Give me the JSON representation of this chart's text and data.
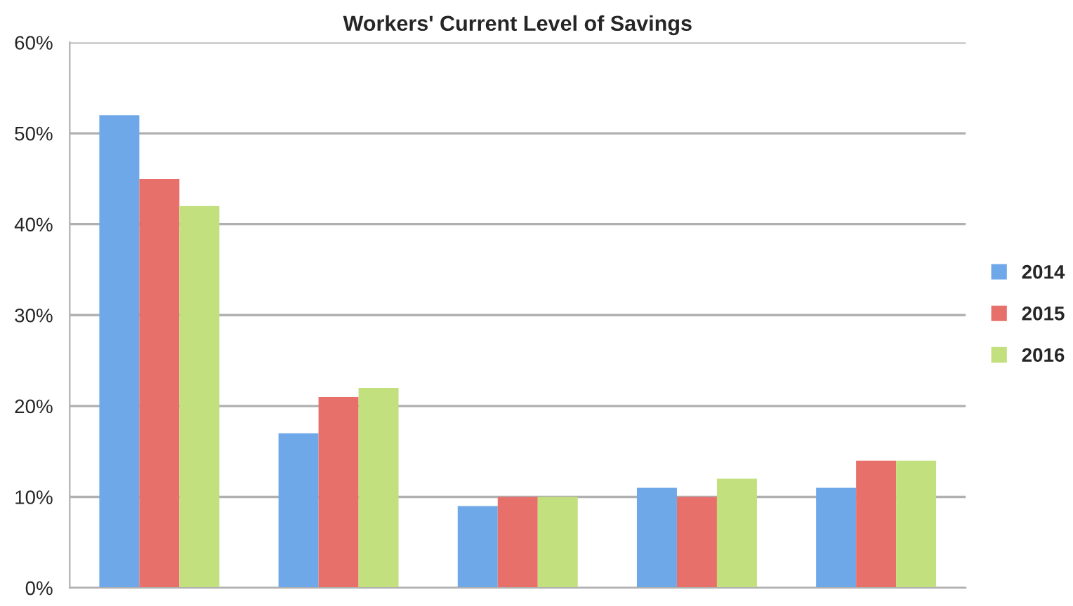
{
  "chart_data": {
    "type": "bar",
    "title": "Workers' Current Level of Savings",
    "categories": [
      null,
      null,
      null,
      null,
      null
    ],
    "series": [
      {
        "name": "2014",
        "color": "#6fa8e8",
        "values": [
          52,
          17,
          9,
          11,
          11
        ]
      },
      {
        "name": "2015",
        "color": "#e8706a",
        "values": [
          45,
          21,
          10,
          10,
          14
        ]
      },
      {
        "name": "2016",
        "color": "#c3e07e",
        "values": [
          42,
          22,
          10,
          12,
          14
        ]
      }
    ],
    "ylim": [
      0,
      60
    ],
    "yticks": [
      {
        "value": 0,
        "label": "0%"
      },
      {
        "value": 10,
        "label": "10%"
      },
      {
        "value": 20,
        "label": "20%"
      },
      {
        "value": 30,
        "label": "30%"
      },
      {
        "value": 40,
        "label": "40%"
      },
      {
        "value": 50,
        "label": "50%"
      },
      {
        "value": 60,
        "label": "60%"
      }
    ],
    "grid": "y",
    "legend": "right"
  }
}
